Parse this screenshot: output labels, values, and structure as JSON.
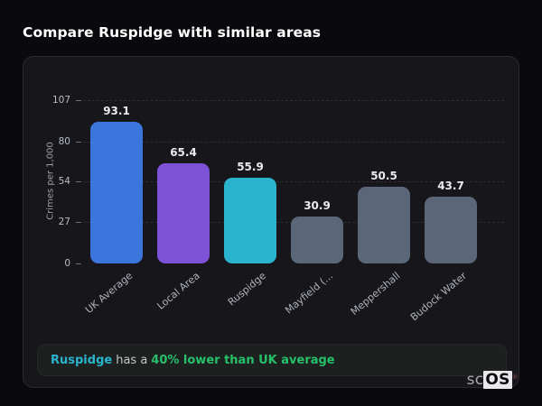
{
  "page": {
    "title": "Compare Ruspidge with similar areas"
  },
  "chart_data": {
    "type": "bar",
    "title": "",
    "xlabel": "",
    "ylabel": "Crimes per 1,000",
    "categories": [
      "UK Average",
      "Local Area",
      "Ruspidge",
      "Mayfield (...",
      "Meppershall",
      "Budock Water"
    ],
    "values": [
      93.1,
      65.4,
      55.9,
      30.9,
      50.5,
      43.7
    ],
    "value_labels": [
      "93.1",
      "65.4",
      "55.9",
      "30.9",
      "50.5",
      "43.7"
    ],
    "bar_colors": [
      "#3b76dd",
      "#7d52d6",
      "#2ab4cd",
      "#5b6779",
      "#5b6779",
      "#5b6779"
    ],
    "yticks": [
      107,
      80,
      54,
      27,
      0
    ],
    "ytick_labels": [
      "107",
      "80",
      "54",
      "27",
      "0"
    ],
    "ylim": [
      0,
      107
    ],
    "grid": "horizontal-dashed",
    "legend": "none",
    "x_label_rotation_deg": -40
  },
  "note": {
    "highlight": "Ruspidge",
    "middle": "has a",
    "stat": "40% lower than UK average",
    "highlight_color": "#2ab4cd",
    "stat_color": "#27c06a"
  },
  "watermark": {
    "prefix": "sc",
    "suffix": "OS",
    "registered": "®"
  },
  "colors": {
    "page_bg": "#0a0a0e",
    "card_bg": "#16161b",
    "card_border": "#2a2a31",
    "gridline": "#2c2c33",
    "note_bg": "#1c211f"
  }
}
